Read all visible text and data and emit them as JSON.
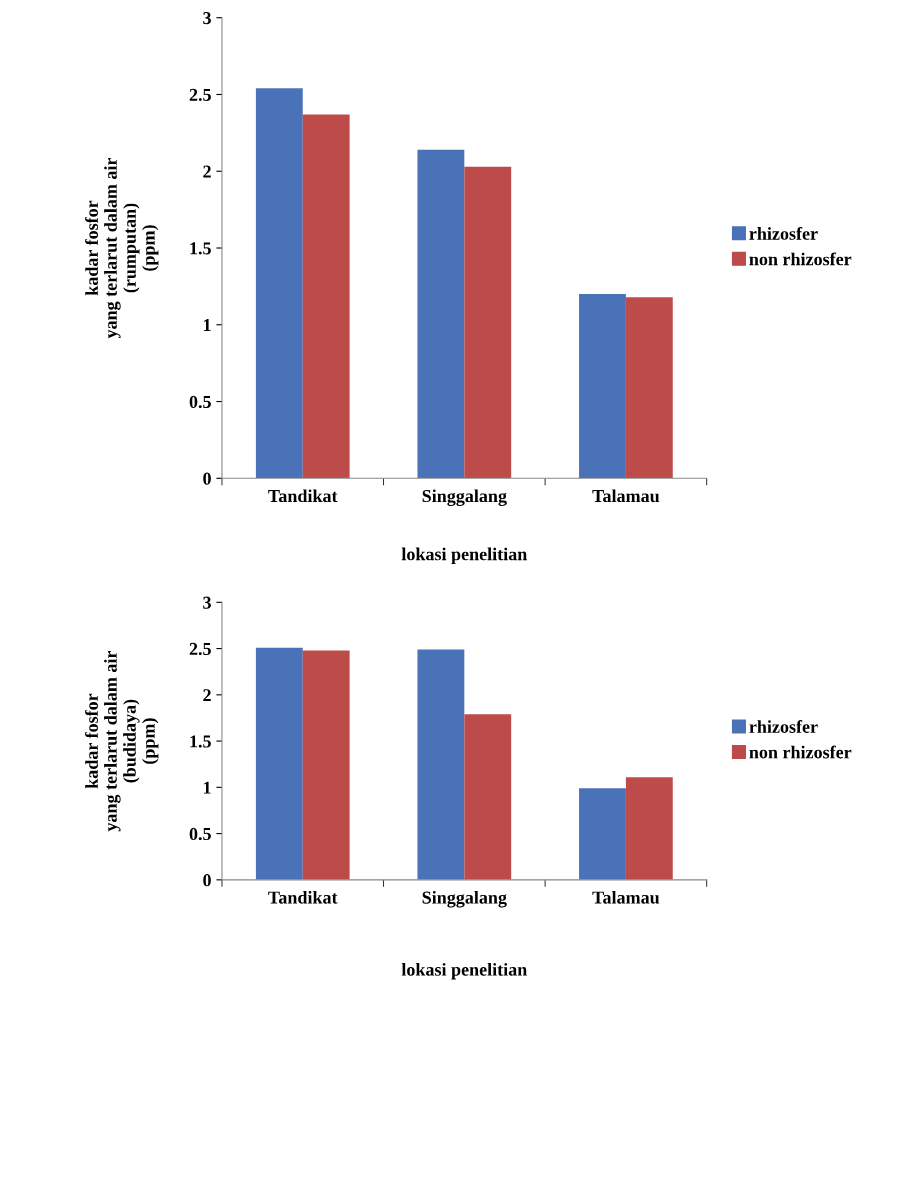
{
  "chart_data": [
    {
      "type": "bar",
      "xlabel": "lokasi penelitian",
      "ylabel": "kadar fosfor\nyang terlarut dalam air\n(rumputan)\n(ppm)",
      "categories": [
        "Tandikat",
        "Singgalang",
        "Talamau"
      ],
      "series": [
        {
          "name": "rhizosfer",
          "color": "#4a72b8",
          "values": [
            2.54,
            2.14,
            1.2
          ]
        },
        {
          "name": "non rhizosfer",
          "color": "#bc4b4a",
          "values": [
            2.37,
            2.03,
            1.18
          ]
        }
      ],
      "ylim": [
        0,
        3
      ],
      "yticks": [
        0,
        0.5,
        1,
        1.5,
        2,
        2.5,
        3
      ],
      "grid": false,
      "legend": "right"
    },
    {
      "type": "bar",
      "xlabel": "lokasi penelitian",
      "ylabel": "kadar fosfor\nyang terlarut dalam air\n(budidaya)\n(ppm)",
      "categories": [
        "Tandikat",
        "Singgalang",
        "Talamau"
      ],
      "series": [
        {
          "name": "rhizosfer",
          "color": "#4a72b8",
          "values": [
            2.51,
            2.49,
            0.99
          ]
        },
        {
          "name": "non rhizosfer",
          "color": "#bc4b4a",
          "values": [
            2.48,
            1.79,
            1.11
          ]
        }
      ],
      "ylim": [
        0,
        3
      ],
      "yticks": [
        0,
        0.5,
        1,
        1.5,
        2,
        2.5,
        3
      ],
      "grid": false,
      "legend": "right"
    }
  ]
}
